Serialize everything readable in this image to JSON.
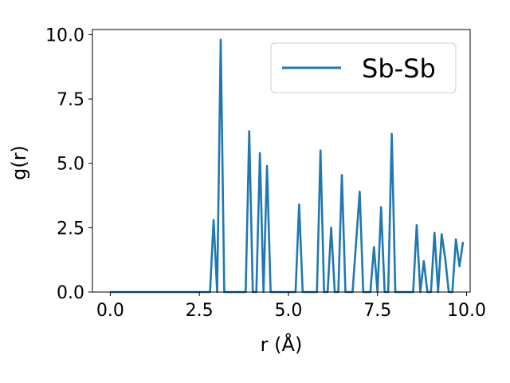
{
  "chart_data": {
    "type": "line",
    "xlabel": "r (Å)",
    "ylabel": "g(r)",
    "xlim": [
      -0.5,
      10.1
    ],
    "ylim": [
      0,
      10.2
    ],
    "xticks": [
      0.0,
      2.5,
      5.0,
      7.5,
      10.0
    ],
    "yticks": [
      0.0,
      2.5,
      5.0,
      7.5,
      10.0
    ],
    "xtick_labels": [
      "0.0",
      "2.5",
      "5.0",
      "7.5",
      "10.0"
    ],
    "ytick_labels": [
      "0.0",
      "2.5",
      "5.0",
      "7.5",
      "10.0"
    ],
    "grid": false,
    "legend_position": "top-right",
    "series": [
      {
        "name": "Sb-Sb",
        "color": "#1f77b4",
        "x": [
          0.0,
          2.8,
          2.9,
          3.0,
          3.1,
          3.2,
          3.8,
          3.9,
          4.0,
          4.1,
          4.2,
          4.3,
          4.4,
          4.5,
          5.2,
          5.3,
          5.4,
          5.8,
          5.9,
          6.0,
          6.1,
          6.2,
          6.3,
          6.4,
          6.5,
          6.6,
          6.8,
          7.0,
          7.1,
          7.3,
          7.4,
          7.5,
          7.6,
          7.7,
          7.8,
          7.9,
          8.0,
          8.5,
          8.6,
          8.7,
          8.8,
          8.9,
          9.0,
          9.1,
          9.2,
          9.3,
          9.4,
          9.5,
          9.6,
          9.7,
          9.8,
          9.9
        ],
        "y": [
          0.0,
          0.0,
          2.8,
          0.0,
          9.8,
          0.0,
          0.0,
          6.25,
          0.0,
          0.0,
          5.4,
          0.0,
          4.9,
          0.0,
          0.0,
          3.4,
          0.0,
          0.0,
          5.5,
          0.0,
          0.0,
          2.5,
          0.0,
          0.0,
          4.55,
          0.0,
          0.0,
          3.9,
          0.0,
          0.0,
          1.75,
          0.0,
          3.3,
          0.0,
          0.0,
          6.15,
          0.0,
          0.0,
          2.6,
          0.0,
          1.2,
          0.0,
          0.0,
          2.3,
          0.0,
          2.25,
          1.3,
          0.0,
          0.0,
          2.05,
          1.0,
          1.95
        ]
      }
    ]
  }
}
